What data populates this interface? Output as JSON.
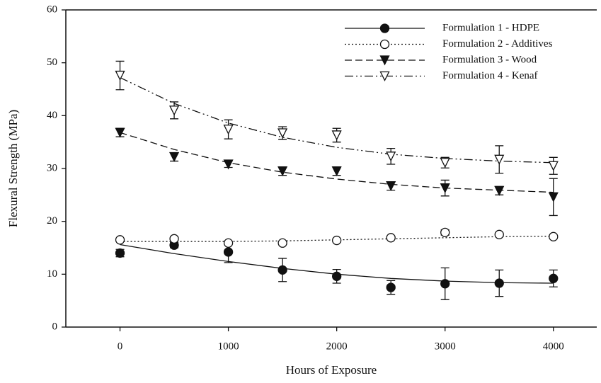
{
  "chart_data": {
    "type": "scatter",
    "x_label": "Hours of Exposure",
    "y_label": "Flexural Strength (MPa)",
    "x": [
      0,
      500,
      1000,
      1500,
      2000,
      2500,
      3000,
      3500,
      4000
    ],
    "xlim": [
      -500,
      4400
    ],
    "ylim": [
      0,
      60
    ],
    "xticks": [
      0,
      1000,
      2000,
      3000,
      4000
    ],
    "yticks": [
      0,
      10,
      20,
      30,
      40,
      50,
      60
    ],
    "legend": "upper-right",
    "series": [
      {
        "name": "Formulation 1 - HDPE",
        "color": "#111111",
        "marker": "filled-circle",
        "dash": "solid",
        "values": [
          14,
          15.5,
          14.2,
          10.8,
          9.6,
          7.5,
          8.2,
          8.3,
          9.2
        ],
        "errors": [
          0.7,
          0.5,
          2,
          2.2,
          1.3,
          1.3,
          3,
          2.5,
          1.6
        ],
        "fit": [
          15.6,
          13.9,
          12.4,
          11.1,
          10.0,
          9.2,
          8.7,
          8.4,
          8.3
        ]
      },
      {
        "name": "Formulation 2 - Additives",
        "color": "#111111",
        "marker": "open-circle",
        "dash": "dotted",
        "values": [
          16.5,
          16.7,
          15.9,
          15.9,
          16.4,
          16.9,
          17.9,
          17.5,
          17.1
        ],
        "errors": [
          0.3,
          0.4,
          0.3,
          0.3,
          0.3,
          0.3,
          0.5,
          0.3,
          0.3
        ],
        "fit": [
          16.2,
          16.2,
          16.2,
          16.3,
          16.5,
          16.7,
          16.9,
          17.1,
          17.2
        ]
      },
      {
        "name": "Formulation 3 - Wood",
        "color": "#111111",
        "marker": "filled-triangle",
        "dash": "dashed",
        "values": [
          36.8,
          32.2,
          30.8,
          29.5,
          29.5,
          26.7,
          26.3,
          25.8,
          24.6
        ],
        "errors": [
          0.8,
          0.8,
          0.6,
          0.8,
          0.8,
          0.8,
          1.5,
          0.8,
          3.5
        ],
        "fit": [
          36.8,
          33.6,
          31.1,
          29.3,
          28.0,
          27.0,
          26.3,
          25.9,
          25.5
        ]
      },
      {
        "name": "Formulation 4 - Kenaf",
        "color": "#111111",
        "marker": "open-triangle",
        "dash": "dash-dot",
        "values": [
          47.6,
          41,
          37.4,
          36.7,
          36.3,
          32.3,
          31.1,
          31.7,
          30.5
        ],
        "errors": [
          2.7,
          1.6,
          1.8,
          1.2,
          1.3,
          1.5,
          1,
          2.6,
          1.6
        ],
        "fit": [
          47.2,
          42.3,
          38.6,
          35.9,
          34.0,
          32.7,
          31.9,
          31.4,
          31.1
        ]
      }
    ]
  }
}
